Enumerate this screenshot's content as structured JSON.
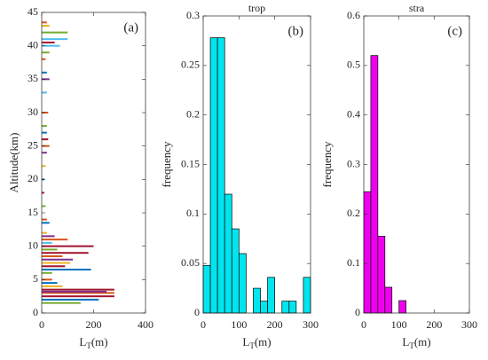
{
  "chart_data": [
    {
      "type": "hbar",
      "panel_label": "(a)",
      "y_label": "Altitude(km)",
      "x_label": "L",
      "x_label_sub": "T",
      "x_label_suffix": "(m)",
      "y": [
        1.5,
        2,
        2.5,
        3,
        3.2,
        3.5,
        4,
        4.5,
        5,
        6,
        6.5,
        7,
        7.5,
        8,
        8.5,
        9,
        9.5,
        10,
        10.5,
        11,
        11.5,
        12,
        13.5,
        14,
        16,
        18,
        20,
        22,
        24,
        25,
        26,
        27,
        28,
        30,
        33,
        35,
        36,
        38,
        39,
        40,
        40.5,
        41,
        42,
        43,
        43.5
      ],
      "values": [
        150,
        220,
        280,
        280,
        250,
        280,
        80,
        60,
        40,
        40,
        190,
        90,
        110,
        120,
        80,
        180,
        60,
        200,
        40,
        100,
        50,
        20,
        30,
        20,
        15,
        10,
        10,
        15,
        20,
        30,
        25,
        20,
        20,
        25,
        20,
        30,
        20,
        15,
        30,
        70,
        50,
        100,
        100,
        30,
        20
      ],
      "colors": [
        "#77AC30",
        "#0072BD",
        "#A2142F",
        "#D95319",
        "#7E2F8E",
        "#A2142F",
        "#EDB120",
        "#0072BD",
        "#D95319",
        "#77AC30",
        "#0072BD",
        "#A2142F",
        "#EDB120",
        "#7E2F8E",
        "#D95319",
        "#A2142F",
        "#77AC30",
        "#A2142F",
        "#4DBEEE",
        "#D95319",
        "#7E2F8E",
        "#EDB120",
        "#0072BD",
        "#D95319",
        "#77AC30",
        "#A2142F",
        "#0072BD",
        "#EDB120",
        "#7E2F8E",
        "#D95319",
        "#A2142F",
        "#0072BD",
        "#77AC30",
        "#D95319",
        "#4DBEEE",
        "#7E2F8E",
        "#0072BD",
        "#D95319",
        "#77AC30",
        "#4DBEEE",
        "#A2142F",
        "#4DBEEE",
        "#77AC30",
        "#EDB120",
        "#D95319"
      ],
      "xlim": [
        0,
        400
      ],
      "xticks": [
        0,
        200,
        400
      ],
      "ylim": [
        0,
        45
      ],
      "yticks": [
        0,
        5,
        10,
        15,
        20,
        25,
        30,
        35,
        40,
        45
      ]
    },
    {
      "type": "histogram",
      "title": "trop",
      "panel_label": "(b)",
      "y_label": "frequency",
      "x_label": "L",
      "x_label_sub": "T",
      "x_label_suffix": "(m)",
      "bins": [
        0,
        20,
        40,
        60,
        80,
        100,
        120,
        140,
        160,
        180,
        200,
        220,
        240,
        260,
        280,
        300
      ],
      "values": [
        0.048,
        0.278,
        0.278,
        0.12,
        0.085,
        0.06,
        0,
        0.025,
        0.012,
        0.036,
        0,
        0.012,
        0.012,
        0,
        0.036
      ],
      "color": "#00E5EE",
      "xlim": [
        0,
        300
      ],
      "xticks": [
        0,
        100,
        200,
        300
      ],
      "ylim": [
        0,
        0.3
      ],
      "yticks": [
        0,
        0.05,
        0.1,
        0.15,
        0.2,
        0.25,
        0.3
      ]
    },
    {
      "type": "histogram",
      "title": "stra",
      "panel_label": "(c)",
      "y_label": "frequency",
      "x_label": "L",
      "x_label_sub": "T",
      "x_label_suffix": "(m)",
      "bins": [
        0,
        20,
        40,
        60,
        80,
        100,
        120
      ],
      "values": [
        0.245,
        0.52,
        0.155,
        0.052,
        0,
        0.025
      ],
      "color": "#EE00EE",
      "xlim": [
        0,
        300
      ],
      "xticks": [
        0,
        100,
        200,
        300
      ],
      "ylim": [
        0,
        0.6
      ],
      "yticks": [
        0,
        0.1,
        0.2,
        0.3,
        0.4,
        0.5,
        0.6
      ]
    }
  ]
}
